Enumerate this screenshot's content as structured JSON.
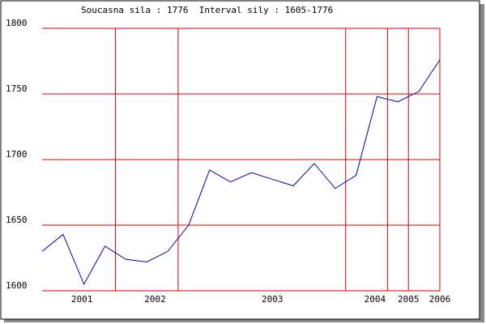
{
  "chart_data": {
    "type": "line",
    "title": "Soucasna sila : 1776  Interval sily : 1605-1776",
    "x": [
      0,
      1,
      2,
      3,
      4,
      5,
      6,
      7,
      8,
      9,
      10,
      11,
      12,
      13,
      14,
      15,
      16,
      17,
      18,
      19
    ],
    "series": [
      {
        "color": "#0000aa",
        "values": [
          1630,
          1643,
          1605,
          1634,
          1624,
          1622,
          1630,
          1650,
          1692,
          1683,
          1690,
          1685,
          1680,
          1697,
          1678,
          1688,
          1748,
          1744,
          1752,
          1776
        ]
      }
    ],
    "xlim": [
      0,
      19
    ],
    "xticks": [
      {
        "value": 1.9,
        "label": "2001"
      },
      {
        "value": 5.4,
        "label": "2002"
      },
      {
        "value": 11.0,
        "label": "2003"
      },
      {
        "value": 15.9,
        "label": "2004"
      },
      {
        "value": 17.5,
        "label": "2005"
      },
      {
        "value": 19,
        "label": "2006"
      }
    ],
    "xgrid": [
      3.5,
      6.5,
      14.5,
      16.5,
      17.5,
      19
    ],
    "ylim": [
      1600,
      1800
    ],
    "yticks": [
      1600,
      1650,
      1700,
      1750,
      1800
    ],
    "grid_color": "#dd0000"
  }
}
